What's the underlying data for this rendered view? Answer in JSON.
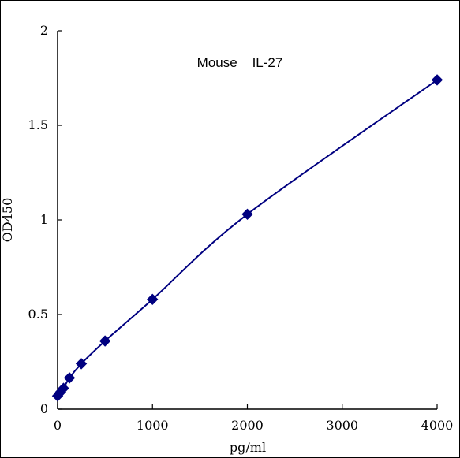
{
  "chart_data": {
    "type": "line",
    "title": "Mouse    IL-27",
    "xlabel": "pg/ml",
    "ylabel": "OD450",
    "xlim": [
      0,
      4000
    ],
    "ylim": [
      0,
      2
    ],
    "x_ticks": [
      "0",
      "1000",
      "2000",
      "3000",
      "4000"
    ],
    "y_ticks": [
      "0",
      "0.5",
      "1",
      "1.5",
      "2"
    ],
    "grid": false,
    "legend": "none",
    "series": [
      {
        "x": [
          0,
          31.25,
          62.5,
          125,
          250,
          500,
          1000,
          2000,
          4000
        ],
        "y": [
          0.07,
          0.09,
          0.11,
          0.165,
          0.24,
          0.36,
          0.58,
          1.03,
          1.74
        ],
        "color": "#000080",
        "marker": "diamond"
      }
    ]
  }
}
